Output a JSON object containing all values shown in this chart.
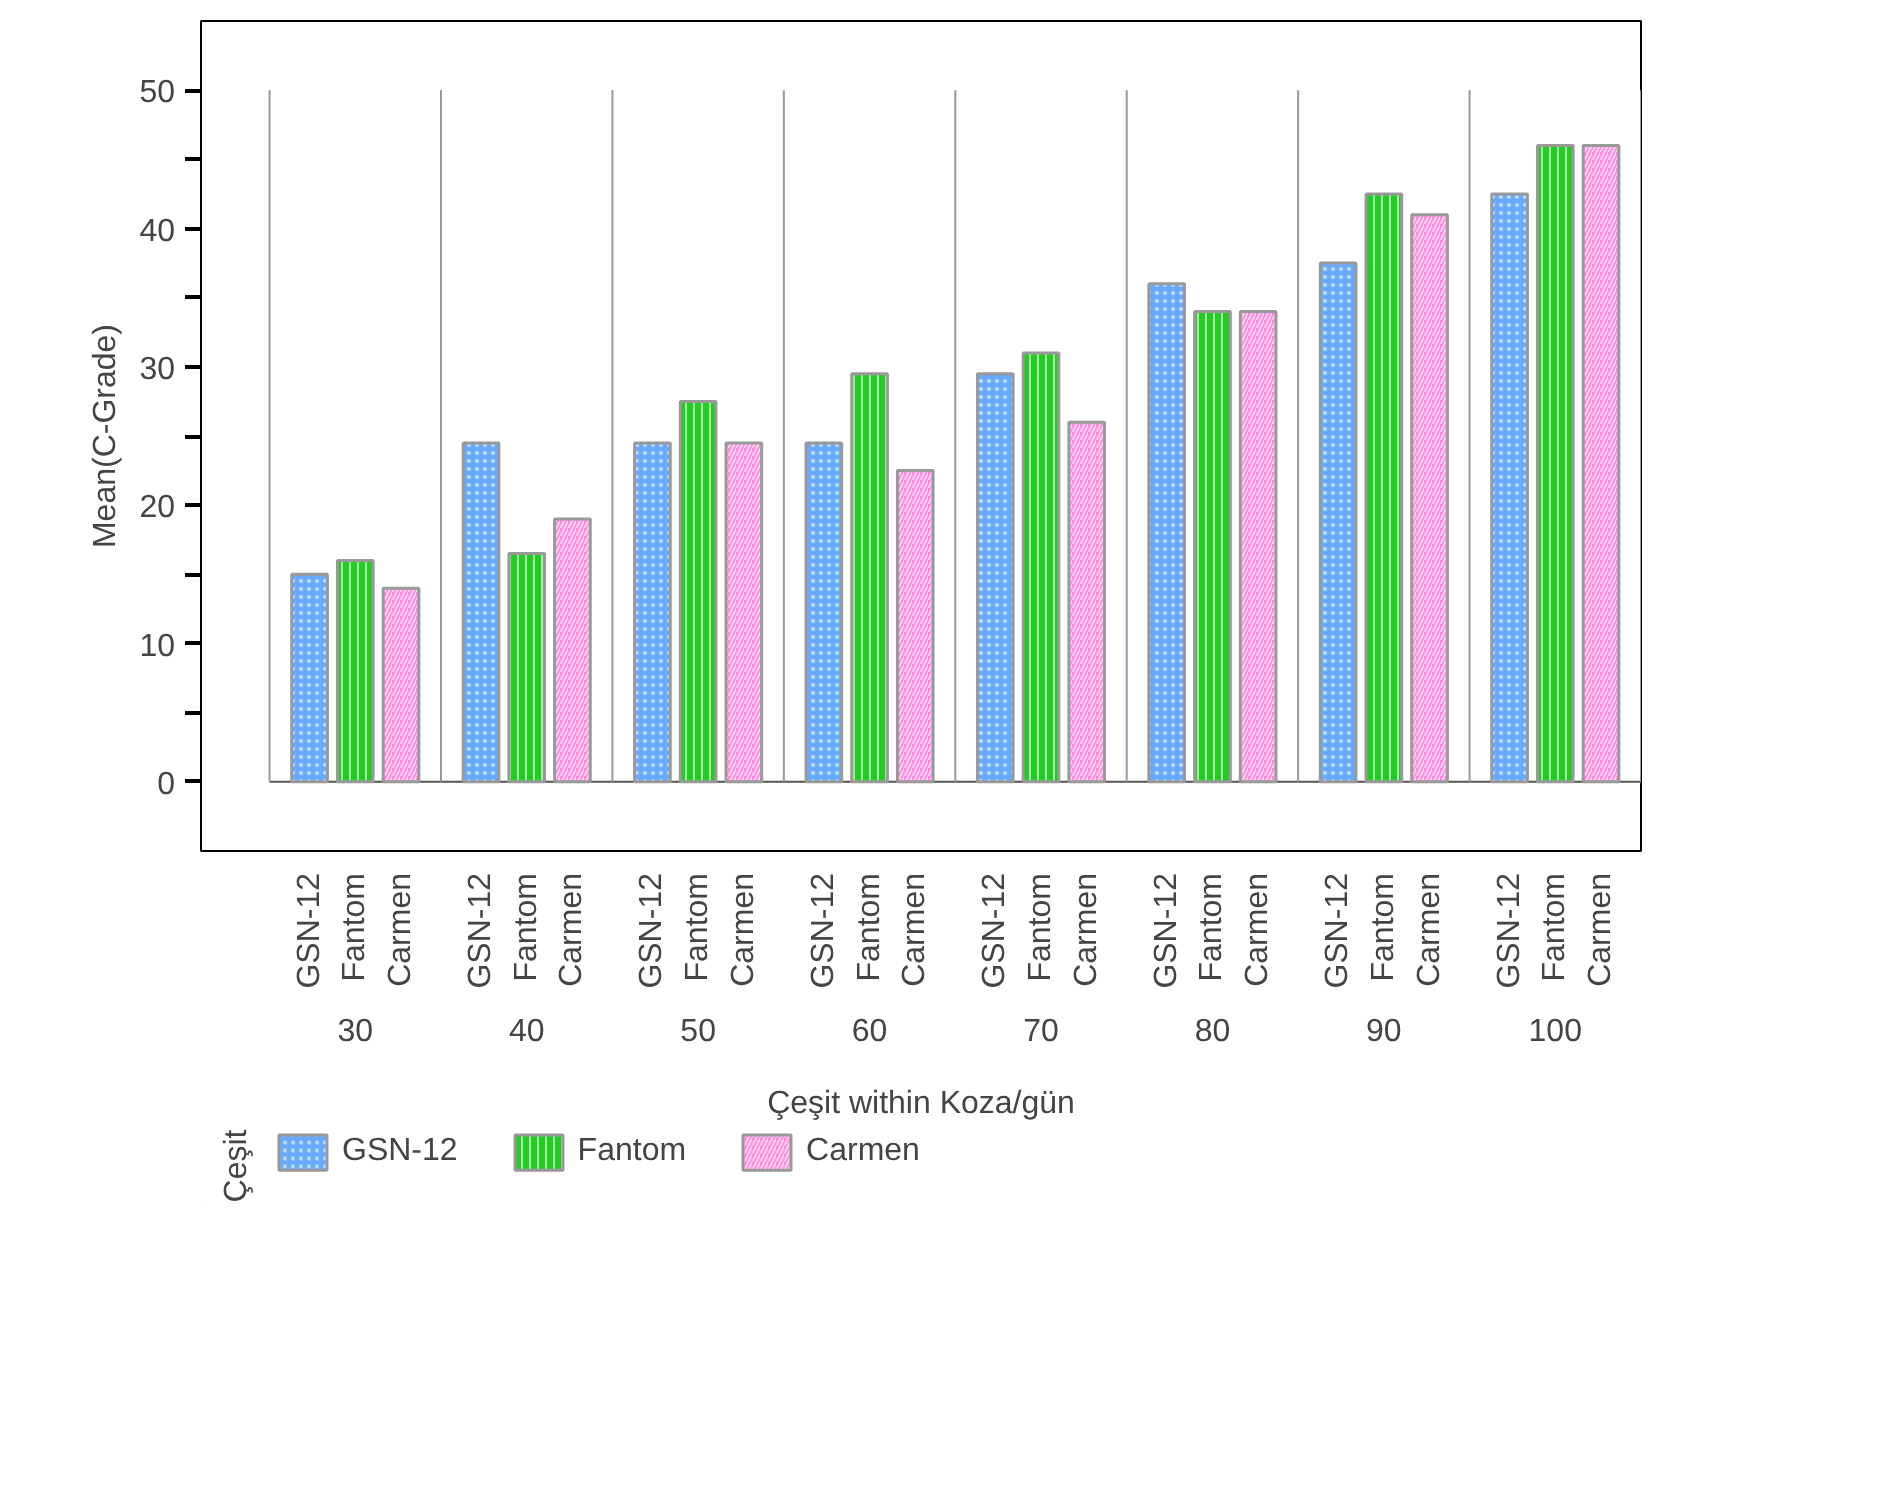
{
  "chart_data": {
    "type": "bar",
    "xlabel": "Çeşit within Koza/gün",
    "ylabel": "Mean(C-Grade)",
    "legend_title": "Çeşit",
    "categories": [
      "30",
      "40",
      "50",
      "60",
      "70",
      "80",
      "90",
      "100"
    ],
    "series": [
      {
        "name": "GSN-12",
        "color": "#66aaff",
        "values": [
          15,
          24.5,
          24.5,
          24.5,
          29.5,
          36,
          37.5,
          42.5
        ]
      },
      {
        "name": "Fantom",
        "color": "#22cc22",
        "values": [
          16,
          16.5,
          27.5,
          29.5,
          31,
          34,
          42.5,
          46
        ]
      },
      {
        "name": "Carmen",
        "color": "#ff88dd",
        "values": [
          14,
          19,
          24.5,
          22.5,
          26,
          34,
          41,
          46
        ]
      }
    ],
    "ylim": [
      -5,
      55
    ],
    "yticks": [
      0,
      {
        "value": 5,
        "label": null
      },
      10,
      {
        "value": 15,
        "label": null
      },
      20,
      {
        "value": 25,
        "label": null
      },
      30,
      {
        "value": 35,
        "label": null
      },
      40,
      {
        "value": 45,
        "label": null
      },
      50
    ],
    "grid": "x",
    "legend": "bottom"
  }
}
